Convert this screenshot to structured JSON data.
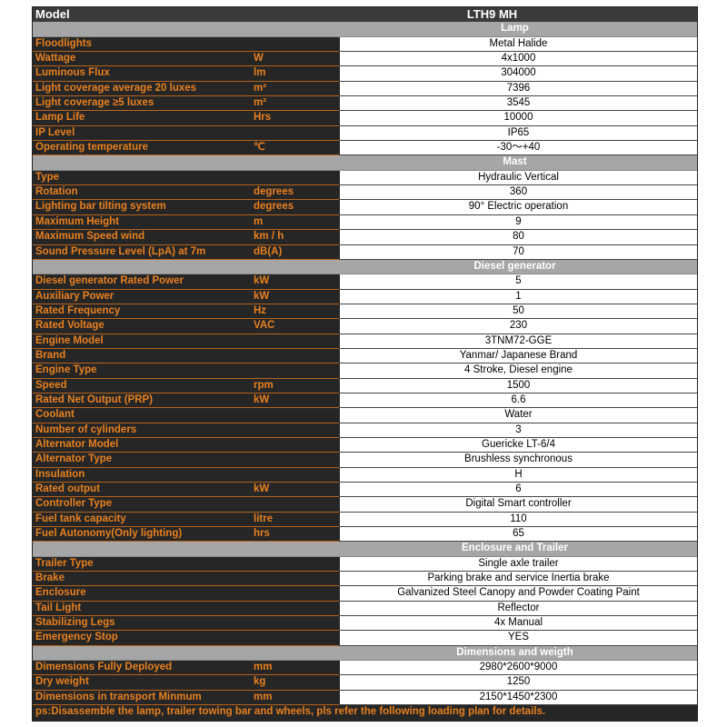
{
  "header": {
    "label": "Model",
    "value": "LTH9 MH"
  },
  "sections": [
    {
      "title": "Lamp",
      "rows": [
        [
          "Floodlights",
          "",
          "Metal Halide"
        ],
        [
          "Wattage",
          "W",
          "4x1000"
        ],
        [
          "Luminous Flux",
          "lm",
          "304000"
        ],
        [
          "Light coverage average 20 luxes",
          "m²",
          "7396"
        ],
        [
          "Light coverage ≥5 luxes",
          "m²",
          "3545"
        ],
        [
          "Lamp Life",
          "Hrs",
          "10000"
        ],
        [
          "IP Level",
          "",
          "IP65"
        ],
        [
          "Operating temperature",
          "℃",
          "-30～+40"
        ]
      ]
    },
    {
      "title": "Mast",
      "rows": [
        [
          "Type",
          "",
          "Hydraulic Vertical"
        ],
        [
          "Rotation",
          "degrees",
          "360"
        ],
        [
          "Lighting bar tilting system",
          "degrees",
          "90° Electric operation"
        ],
        [
          "Maximum Height",
          "m",
          "9"
        ],
        [
          "Maximum Speed wind",
          "km / h",
          "80"
        ],
        [
          "Sound Pressure Level (LpA) at 7m",
          "dB(A)",
          "70"
        ]
      ]
    },
    {
      "title": "Diesel generator",
      "rows": [
        [
          "Diesel generator Rated Power",
          "kW",
          "5"
        ],
        [
          "Auxiliary Power",
          "kW",
          "1"
        ],
        [
          "Rated Frequency",
          "Hz",
          "50"
        ],
        [
          "Rated Voltage",
          "VAC",
          "230"
        ],
        [
          "Engine Model",
          "",
          "3TNM72-GGE"
        ],
        [
          "Brand",
          "",
          "Yanmar/ Japanese Brand"
        ],
        [
          "Engine Type",
          "",
          "4 Stroke, Diesel engine"
        ],
        [
          "Speed",
          "rpm",
          "1500"
        ],
        [
          "Rated Net Output (PRP)",
          "kW",
          "6.6"
        ],
        [
          "Coolant",
          "",
          "Water"
        ],
        [
          "Number of cylinders",
          "",
          "3"
        ],
        [
          "Alternator Model",
          "",
          "Guericke  LT-6/4"
        ],
        [
          "Alternator Type",
          "",
          "Brushless synchronous"
        ],
        [
          "Insulation",
          "",
          "H"
        ],
        [
          "Rated output",
          "kW",
          "6"
        ],
        [
          "Controller Type",
          "",
          "Digital Smart controller"
        ],
        [
          "Fuel tank capacity",
          "litre",
          "110"
        ],
        [
          "Fuel Autonomy(Only lighting)",
          "hrs",
          "65"
        ]
      ]
    },
    {
      "title": "Enclosure and Trailer",
      "rows": [
        [
          "Trailer Type",
          "",
          "Single axle trailer"
        ],
        [
          "Brake",
          "",
          "Parking brake and service Inertia brake"
        ],
        [
          "Enclosure",
          "",
          "Galvanized Steel Canopy and Powder Coating Paint"
        ],
        [
          "Tail Light",
          "",
          "Reflector"
        ],
        [
          "Stabilizing Legs",
          "",
          "4x Manual"
        ],
        [
          "Emergency Stop",
          "",
          "YES"
        ]
      ]
    },
    {
      "title": "Dimensions and weigth",
      "rows": [
        [
          "Dimensions Fully Deployed",
          "mm",
          "2980*2600*9000"
        ],
        [
          "Dry weight",
          "kg",
          "1250"
        ],
        [
          "Dimensions in transport Minmum",
          "mm",
          "2150*1450*2300"
        ]
      ]
    }
  ],
  "note": "ps:Disassemble the lamp, trailer towing bar and wheels, pls refer the following loading plan for details.",
  "colors": {
    "accent": "#e8801f",
    "dark": "#262626",
    "section": "#a6a6a6"
  }
}
